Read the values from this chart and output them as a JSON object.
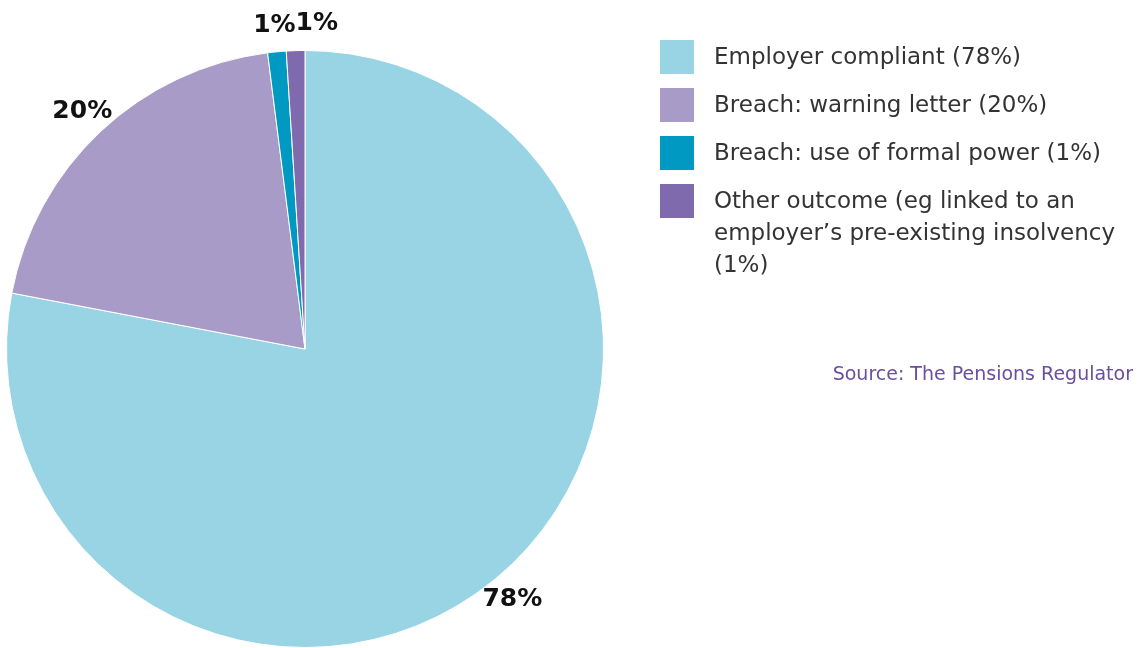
{
  "chart_data": {
    "type": "pie",
    "categories": [
      "Employer compliant (78%)",
      "Breach: warning letter (20%)",
      "Breach: use of formal power (1%)",
      "Other outcome (eg linked to an employer’s pre-existing insolvency (1%)"
    ],
    "values": [
      78,
      20,
      1,
      1
    ],
    "colors": [
      "#98d4e4",
      "#a99bc8",
      "#0099c1",
      "#7f6aad"
    ],
    "value_labels": [
      "78%",
      "20%",
      "1%",
      "1%"
    ],
    "legend": "right",
    "annotations": [
      "Source: The Pensions Regulator"
    ]
  }
}
